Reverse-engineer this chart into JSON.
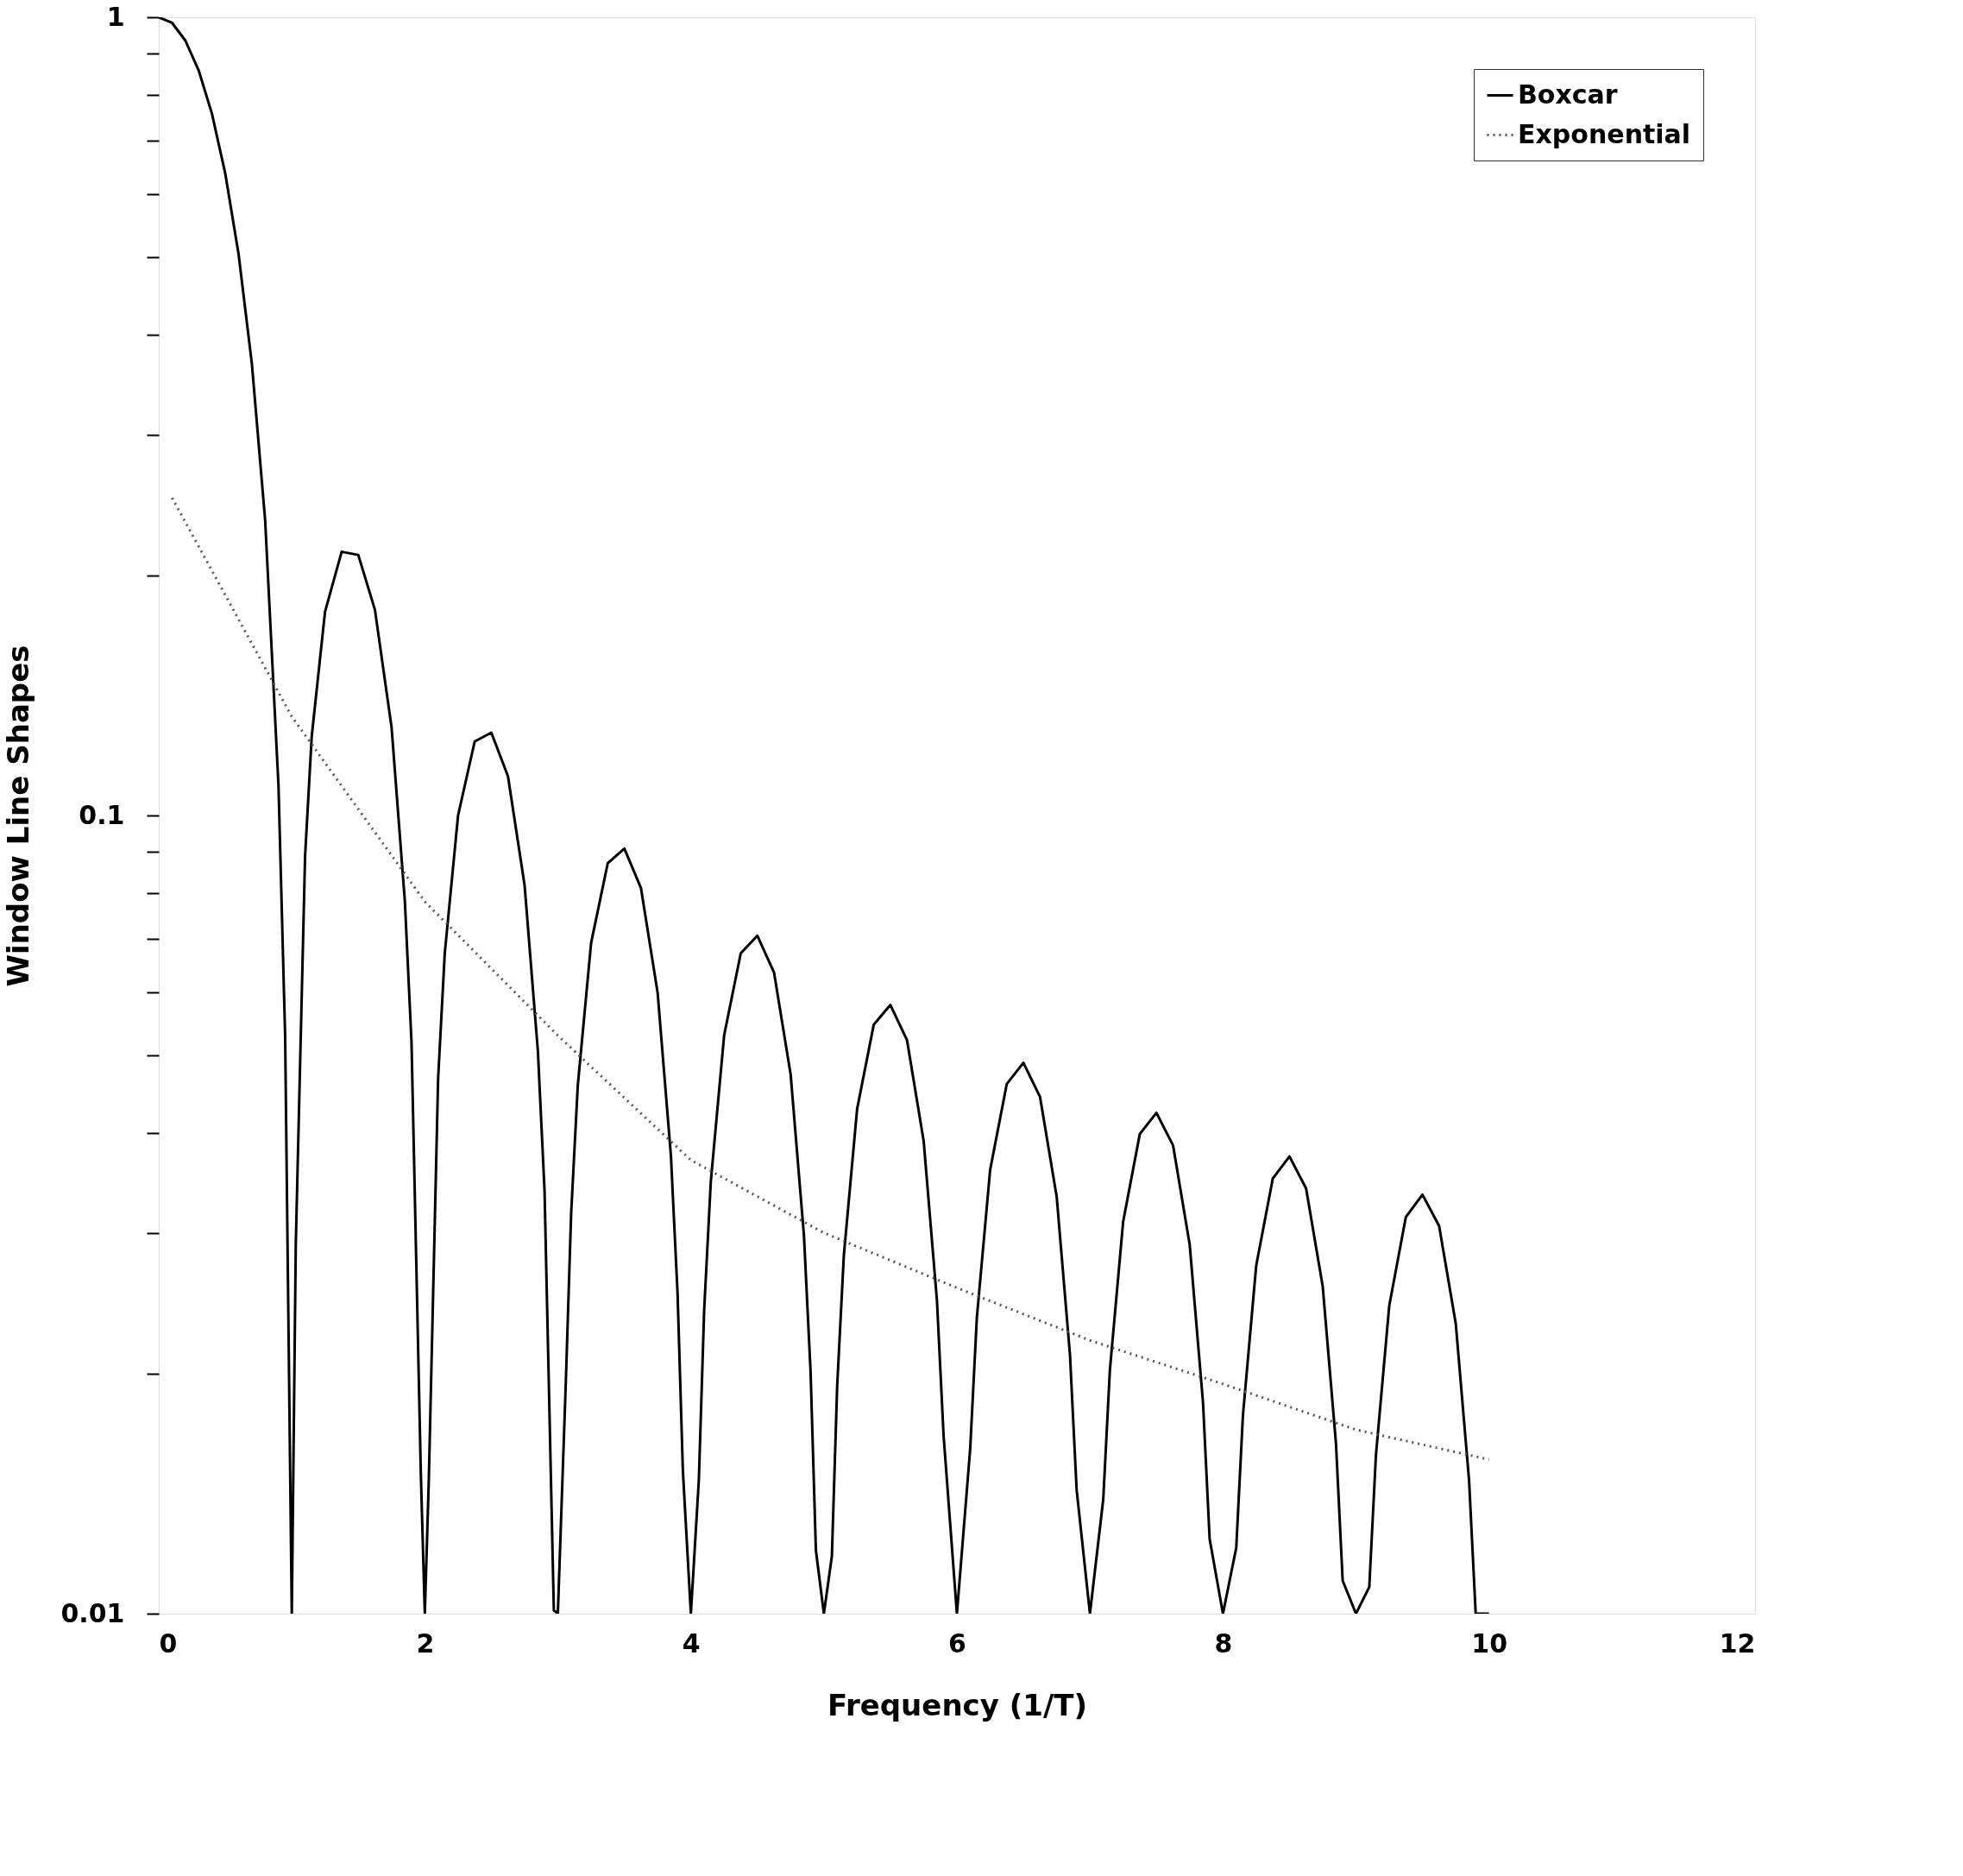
{
  "chart_data": {
    "type": "line",
    "xlabel": "Frequency (1/T)",
    "ylabel": "Window Line Shapes",
    "log": "y",
    "grid": false,
    "legend": "top right",
    "marker": "none",
    "xlim": [
      0,
      12
    ],
    "xticks": [
      0,
      2,
      4,
      6,
      8,
      10,
      12
    ],
    "ylim": [
      0.01,
      1
    ],
    "yticks": [
      0.01,
      {
        "value": 0.02,
        "label": null
      },
      {
        "value": 0.03,
        "label": null
      },
      {
        "value": 0.04,
        "label": null
      },
      {
        "value": 0.05,
        "label": null
      },
      {
        "value": 0.06,
        "label": null
      },
      {
        "value": 0.07,
        "label": null
      },
      {
        "value": 0.08,
        "label": null
      },
      {
        "value": 0.09,
        "label": null
      },
      0.1,
      {
        "value": 0.2,
        "label": null
      },
      {
        "value": 0.3,
        "label": null
      },
      {
        "value": 0.4,
        "label": null
      },
      {
        "value": 0.5,
        "label": null
      },
      {
        "value": 0.6,
        "label": null
      },
      {
        "value": 0.7,
        "label": null
      },
      {
        "value": 0.8,
        "label": null
      },
      {
        "value": 0.9,
        "label": null
      },
      1
    ],
    "series": [
      {
        "name": "Boxcar",
        "color": "#000000",
        "line_style": "solid",
        "x": [
          0,
          0.1,
          0.2,
          0.3,
          0.4,
          0.5,
          0.6,
          0.7,
          0.8,
          0.9,
          0.95,
          1.0,
          1.03,
          1.1,
          1.15,
          1.25,
          1.375,
          1.5,
          1.625,
          1.75,
          1.85,
          1.9,
          1.97,
          2.0,
          2.03,
          2.1,
          2.15,
          2.25,
          2.375,
          2.5,
          2.625,
          2.75,
          2.85,
          2.9,
          2.97,
          3.0,
          3.06,
          3.1,
          3.15,
          3.25,
          3.375,
          3.5,
          3.625,
          3.75,
          3.85,
          3.9,
          3.94,
          4.0,
          4.06,
          4.1,
          4.15,
          4.25,
          4.375,
          4.5,
          4.625,
          4.75,
          4.85,
          4.9,
          4.94,
          5.0,
          5.06,
          5.1,
          5.15,
          5.25,
          5.375,
          5.5,
          5.625,
          5.75,
          5.85,
          5.9,
          6.0,
          6.1,
          6.15,
          6.25,
          6.375,
          6.5,
          6.625,
          6.75,
          6.85,
          6.9,
          7.0,
          7.1,
          7.15,
          7.25,
          7.375,
          7.5,
          7.625,
          7.75,
          7.85,
          7.9,
          8.0,
          8.1,
          8.15,
          8.25,
          8.375,
          8.5,
          8.625,
          8.75,
          8.85,
          8.9,
          9.0,
          9.1,
          9.15,
          9.25,
          9.375,
          9.5,
          9.625,
          9.75,
          9.85,
          9.9,
          10.0
        ],
        "values": [
          1,
          0.984,
          0.935,
          0.858,
          0.757,
          0.637,
          0.505,
          0.368,
          0.234,
          0.109,
          0.053,
          0.01,
          0.029,
          0.089,
          0.1257,
          0.18,
          0.214,
          0.212,
          0.181,
          0.129,
          0.0781,
          0.052,
          0.015,
          0.01,
          0.0147,
          0.0468,
          0.0672,
          0.1,
          0.1238,
          0.127,
          0.112,
          0.0818,
          0.0507,
          0.0339,
          0.0101,
          0.01,
          0.0195,
          0.0317,
          0.0459,
          0.0692,
          0.0871,
          0.0909,
          0.0811,
          0.06,
          0.0375,
          0.0252,
          0.0151,
          0.01,
          0.0147,
          0.024,
          0.0348,
          0.053,
          0.0672,
          0.0707,
          0.0636,
          0.0474,
          0.0298,
          0.0201,
          0.012,
          0.01,
          0.0118,
          0.0193,
          0.0281,
          0.0429,
          0.0547,
          0.0579,
          0.0523,
          0.0391,
          0.0247,
          0.0167,
          0.01,
          0.0161,
          0.0235,
          0.036,
          0.0461,
          0.049,
          0.0444,
          0.0333,
          0.0211,
          0.0143,
          0.01,
          0.0139,
          0.0202,
          0.031,
          0.0399,
          0.0424,
          0.0386,
          0.029,
          0.0184,
          0.0124,
          0.01,
          0.0121,
          0.0177,
          0.0273,
          0.0351,
          0.0374,
          0.0341,
          0.0257,
          0.0163,
          0.011,
          0.01,
          0.0108,
          0.0158,
          0.0243,
          0.0314,
          0.0335,
          0.0306,
          0.0231,
          0.0147,
          0.01,
          0.01
        ]
      },
      {
        "name": "Exponential",
        "color": "#555555",
        "line_style": "dotted",
        "x": [
          0.1,
          1,
          2,
          3,
          4,
          5,
          6,
          7,
          8,
          9,
          10
        ],
        "values": [
          0.25,
          0.133,
          0.078,
          0.053,
          0.037,
          0.03,
          0.0256,
          0.022,
          0.0194,
          0.017,
          0.0156
        ]
      }
    ]
  }
}
